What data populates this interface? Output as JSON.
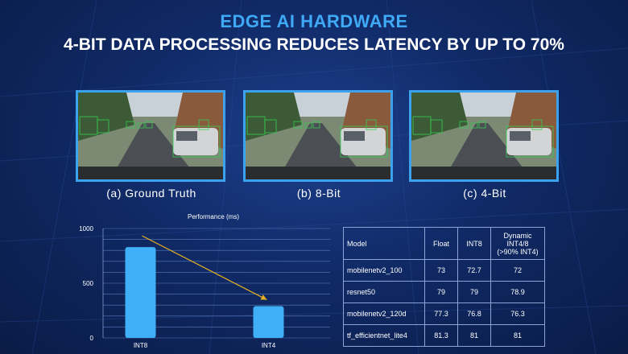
{
  "header": {
    "title": "EDGE AI HARDWARE",
    "subtitle": "4-BIT DATA PROCESSING REDUCES LATENCY BY UP TO 70%"
  },
  "colors": {
    "accent_blue": "#3fa9f5",
    "frame_border": "#3da2ee",
    "bar_fill": "#3fb0f7",
    "trend_arrow": "#e6b020",
    "detection_box": "#33cc55"
  },
  "images": [
    {
      "name": "ground-truth",
      "caption": "(a) Ground Truth"
    },
    {
      "name": "8-bit",
      "caption": "(b) 8-Bit"
    },
    {
      "name": "4-bit",
      "caption": "(c) 4-Bit"
    }
  ],
  "chart_data": {
    "type": "bar",
    "title": "Performance (ms)",
    "categories": [
      "INT8",
      "INT4"
    ],
    "values": [
      830,
      290
    ],
    "ylim": [
      0,
      1000
    ],
    "yticks": [
      0,
      500,
      1000
    ],
    "grid": true,
    "annotation": "downward trend arrow from INT8 to INT4"
  },
  "table": {
    "headers": [
      "Model",
      "Float",
      "INT8",
      "Dynamic\nINT4/8\n(>90% INT4)"
    ],
    "header_dynamic_lines": [
      "Dynamic",
      "INT4/8",
      "(>90% INT4)"
    ],
    "rows": [
      [
        "mobilenetv2_100",
        "73",
        "72.7",
        "72"
      ],
      [
        "resnet50",
        "79",
        "79",
        "78.9"
      ],
      [
        "mobilenetv2_120d",
        "77.3",
        "76.8",
        "76.3"
      ],
      [
        "tf_efficientnet_lite4",
        "81.3",
        "81",
        "81"
      ]
    ]
  }
}
